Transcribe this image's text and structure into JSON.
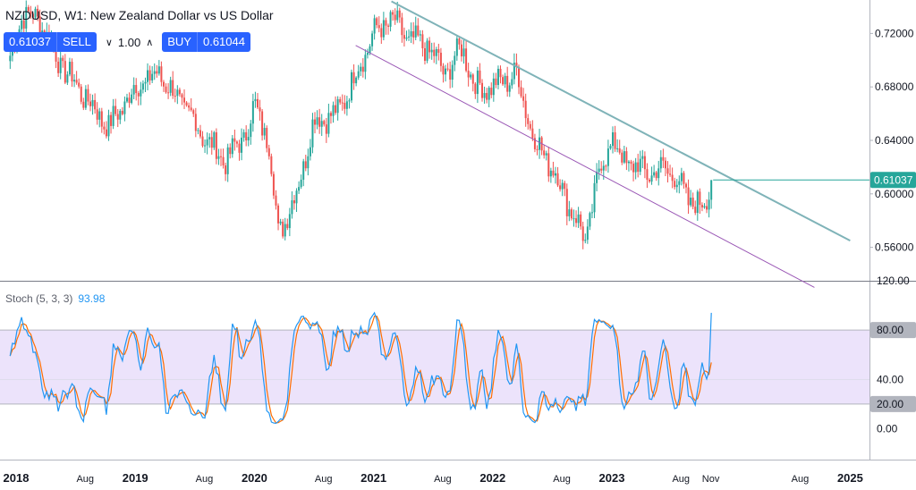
{
  "header": {
    "title": "NZDUSD, W1: New Zealand Dollar vs US Dollar"
  },
  "trade_panel": {
    "sell_price": "0.61037",
    "sell_label": "SELL",
    "quantity": "1.00",
    "buy_label": "BUY",
    "buy_price": "0.61044"
  },
  "stochastic": {
    "label": "Stoch (5, 3, 3)",
    "value": "93.98"
  },
  "colors": {
    "bull": "#26a69a",
    "bear": "#ef5350",
    "upper_trend": "#7fb3b8",
    "lower_trend": "#9b59b6",
    "k_line": "#2196f3",
    "d_line": "#ff6d00",
    "band_fill": "#ece3fb",
    "price_tag": "#26a69a"
  },
  "chart_data": [
    {
      "type": "candlestick",
      "title": "NZDUSD, W1: New Zealand Dollar vs US Dollar",
      "ylim": [
        0.535,
        0.745
      ],
      "y_ticks": [
        "0.72000",
        "0.68000",
        "0.64000",
        "0.60000",
        "0.56000"
      ],
      "y_tick_values": [
        0.72,
        0.68,
        0.64,
        0.6,
        0.56
      ],
      "last_price": 0.61037,
      "last_price_label": "0.61037",
      "x_labels": [
        "2018",
        "Aug",
        "2019",
        "Aug",
        "2020",
        "Aug",
        "2021",
        "Aug",
        "2022",
        "Aug",
        "2023",
        "Aug",
        "Nov",
        "Aug",
        "2025"
      ],
      "x_label_years": [
        2018.0,
        2018.58,
        2019.0,
        2019.58,
        2020.0,
        2020.58,
        2021.0,
        2021.58,
        2022.0,
        2022.58,
        2023.0,
        2023.58,
        2023.83,
        2024.58,
        2025.0
      ],
      "x_label_bold": [
        true,
        false,
        true,
        false,
        true,
        false,
        true,
        false,
        true,
        false,
        true,
        false,
        false,
        false,
        true
      ],
      "anchors": [
        [
          2017.95,
          0.7
        ],
        [
          2018.05,
          0.735
        ],
        [
          2018.2,
          0.73
        ],
        [
          2018.35,
          0.7
        ],
        [
          2018.6,
          0.67
        ],
        [
          2018.78,
          0.65
        ],
        [
          2019.0,
          0.68
        ],
        [
          2019.2,
          0.69
        ],
        [
          2019.45,
          0.66
        ],
        [
          2019.6,
          0.64
        ],
        [
          2019.75,
          0.625
        ],
        [
          2019.9,
          0.64
        ],
        [
          2020.0,
          0.665
        ],
        [
          2020.12,
          0.64
        ],
        [
          2020.2,
          0.57
        ],
        [
          2020.35,
          0.6
        ],
        [
          2020.5,
          0.655
        ],
        [
          2020.7,
          0.66
        ],
        [
          2020.85,
          0.69
        ],
        [
          2021.0,
          0.72
        ],
        [
          2021.15,
          0.73
        ],
        [
          2021.3,
          0.715
        ],
        [
          2021.45,
          0.71
        ],
        [
          2021.6,
          0.69
        ],
        [
          2021.75,
          0.71
        ],
        [
          2021.85,
          0.68
        ],
        [
          2022.0,
          0.68
        ],
        [
          2022.2,
          0.69
        ],
        [
          2022.35,
          0.64
        ],
        [
          2022.5,
          0.62
        ],
        [
          2022.7,
          0.58
        ],
        [
          2022.78,
          0.565
        ],
        [
          2022.9,
          0.62
        ],
        [
          2023.0,
          0.64
        ],
        [
          2023.1,
          0.625
        ],
        [
          2023.2,
          0.62
        ],
        [
          2023.35,
          0.615
        ],
        [
          2023.45,
          0.62
        ],
        [
          2023.55,
          0.61
        ],
        [
          2023.65,
          0.595
        ],
        [
          2023.75,
          0.59
        ],
        [
          2023.82,
          0.603
        ],
        [
          2023.85,
          0.6104
        ]
      ],
      "trendlines": [
        {
          "name": "upper",
          "from": [
            2021.15,
            0.744
          ],
          "to": [
            2025.0,
            0.565
          ]
        },
        {
          "name": "lower",
          "from": [
            2020.85,
            0.711
          ],
          "to": [
            2024.7,
            0.53
          ]
        }
      ]
    },
    {
      "type": "line",
      "title": "Stoch (5, 3, 3)",
      "ylim": [
        -25,
        120
      ],
      "y_ticks": [
        "120.00",
        "80.00",
        "40.00",
        "20.00",
        "0.00"
      ],
      "y_tick_values": [
        120,
        80,
        40,
        20,
        0
      ],
      "band": [
        20,
        80
      ],
      "last_value": 93.98,
      "series": [
        {
          "name": "%K",
          "color": "#2196f3"
        },
        {
          "name": "%D",
          "color": "#ff6d00"
        }
      ]
    }
  ]
}
